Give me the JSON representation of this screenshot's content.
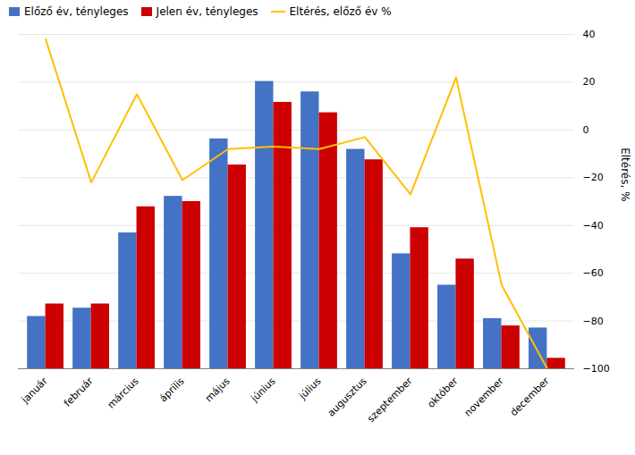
{
  "chart_data": {
    "type": "bar",
    "categories": [
      "január",
      "február",
      "március",
      "április",
      "május",
      "június",
      "július",
      "augusztus",
      "szeptember",
      "október",
      "november",
      "december"
    ],
    "series": [
      {
        "name": "Előző év, tényleges",
        "type": "bar",
        "color": "#4472C4",
        "values": [
          500,
          580,
          1300,
          1650,
          2200,
          2750,
          2650,
          2100,
          1100,
          800,
          480,
          390
        ]
      },
      {
        "name": "Jelen év, tényleges",
        "type": "bar",
        "color": "#CC0000",
        "values": [
          620,
          620,
          1550,
          1600,
          1950,
          2550,
          2450,
          2000,
          1350,
          1050,
          410,
          100
        ]
      },
      {
        "name": "Eltérés, előző év %",
        "type": "line",
        "color": "#FFC000",
        "axis": "y2",
        "values": [
          38,
          -22,
          15,
          -21,
          -8,
          -7,
          -8,
          -3,
          -27,
          22,
          -65,
          -100
        ]
      }
    ],
    "ylim": [
      0,
      3200
    ],
    "y2lim": [
      -100,
      40
    ],
    "y2ticks": [
      -100,
      -80,
      -60,
      -40,
      -20,
      0,
      20,
      40
    ],
    "y2label": "Eltérés, %",
    "grid": true,
    "legend": "upper left"
  }
}
